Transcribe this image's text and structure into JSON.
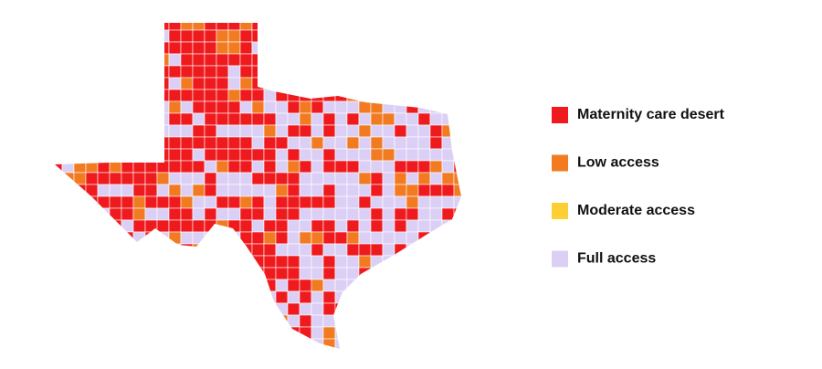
{
  "legend": {
    "items": [
      {
        "label": "Maternity care desert",
        "color": "#ef1a1d"
      },
      {
        "label": "Low access",
        "color": "#f27b22"
      },
      {
        "label": "Moderate access",
        "color": "#fcd034"
      },
      {
        "label": "Full access",
        "color": "#dccff5"
      }
    ]
  }
}
